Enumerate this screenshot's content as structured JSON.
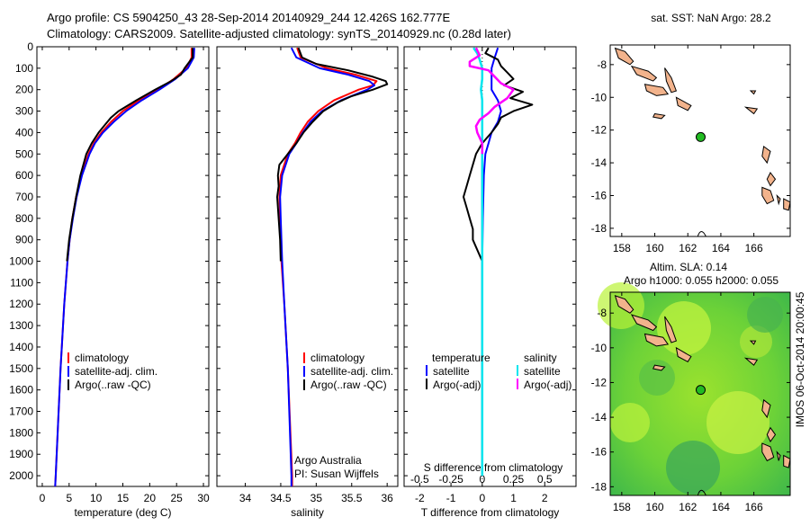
{
  "title_line1": "Argo profile: CS 5904250_43 28-Sep-2014 20140929_244 12.426S 162.777E",
  "title_line2": "Climatology: CARS2009. Satellite-adjusted climatology: synTS_20140929.nc (0.28d later)",
  "colors": {
    "climatology": "#ff0000",
    "satellite": "#0000ff",
    "argo": "#000000",
    "salinity_satellite": "#00e5ee",
    "salinity_argo": "#ff00ff",
    "land": "#f2b38c",
    "argo_marker": "#22bb22"
  },
  "watermark": "IMOS 06-Oct-2014 20:00:45",
  "chart_data": [
    {
      "id": "temperature",
      "type": "line",
      "xlabel": "temperature (deg C)",
      "ylabel": "depth",
      "xlim": [
        -1,
        31
      ],
      "ylim": [
        2050,
        0
      ],
      "xticks": [
        0,
        5,
        10,
        15,
        20,
        25,
        30
      ],
      "yticks": [
        0,
        100,
        200,
        300,
        400,
        500,
        600,
        700,
        800,
        900,
        1000,
        1100,
        1200,
        1300,
        1400,
        1500,
        1600,
        1700,
        1800,
        1900,
        2000
      ],
      "legend": [
        "climatology",
        "satellite-adj. clim.",
        "Argo(..raw -QC)"
      ],
      "series": [
        {
          "name": "climatology",
          "depth": [
            5,
            50,
            100,
            150,
            200,
            250,
            300,
            350,
            400,
            450,
            500,
            600,
            700,
            800,
            900,
            1000,
            1200,
            1500,
            2000,
            2050
          ],
          "values": [
            27.8,
            27.8,
            26.8,
            24.5,
            21.5,
            18.0,
            15.0,
            12.8,
            11.0,
            9.6,
            8.6,
            7.3,
            6.3,
            5.6,
            5.1,
            4.7,
            4.1,
            3.4,
            2.5,
            2.4
          ]
        },
        {
          "name": "satellite-adj. clim.",
          "depth": [
            5,
            50,
            100,
            150,
            200,
            250,
            300,
            350,
            400,
            450,
            500,
            600,
            700,
            800,
            900,
            1000,
            1200,
            1500,
            2000,
            2050
          ],
          "values": [
            28.3,
            28.2,
            27.1,
            24.8,
            21.8,
            18.5,
            15.6,
            13.3,
            11.3,
            9.8,
            8.8,
            7.4,
            6.4,
            5.7,
            5.1,
            4.7,
            4.1,
            3.4,
            2.5,
            2.4
          ]
        },
        {
          "name": "Argo",
          "depth": [
            5,
            50,
            100,
            130,
            160,
            200,
            250,
            300,
            330,
            360,
            400,
            450,
            500,
            600,
            700,
            800,
            900,
            1000
          ],
          "values": [
            28.0,
            28.0,
            26.5,
            25.8,
            24.0,
            21.0,
            17.5,
            14.2,
            12.8,
            11.8,
            10.5,
            9.2,
            8.2,
            7.1,
            6.3,
            5.6,
            5.0,
            4.6
          ]
        }
      ]
    },
    {
      "id": "salinity",
      "type": "line",
      "xlabel": "salinity",
      "xlim": [
        33.6,
        36.15
      ],
      "ylim": [
        2050,
        0
      ],
      "xticks": [
        34,
        34.5,
        35,
        35.5,
        36
      ],
      "legend": [
        "climatology",
        "satellite-adj. clim.",
        "Argo(..raw -QC)"
      ],
      "annotation": [
        "Argo Australia",
        "PI: Susan Wijffels"
      ],
      "series": [
        {
          "name": "climatology",
          "depth": [
            5,
            50,
            100,
            130,
            160,
            180,
            200,
            250,
            300,
            350,
            400,
            450,
            500,
            600,
            700,
            800,
            1000,
            1200,
            1500,
            2000,
            2050
          ],
          "values": [
            34.73,
            34.78,
            35.15,
            35.55,
            35.85,
            35.8,
            35.6,
            35.25,
            35.03,
            34.88,
            34.78,
            34.7,
            34.6,
            34.5,
            34.48,
            34.49,
            34.51,
            34.55,
            34.6,
            34.66,
            34.66
          ]
        },
        {
          "name": "satellite-adj. clim.",
          "depth": [
            5,
            50,
            100,
            130,
            160,
            180,
            200,
            250,
            300,
            350,
            400,
            450,
            500,
            600,
            700,
            800,
            1000,
            1200,
            1500,
            2000,
            2050
          ],
          "values": [
            34.65,
            34.72,
            35.05,
            35.45,
            35.75,
            35.82,
            35.72,
            35.35,
            35.08,
            34.92,
            34.81,
            34.72,
            34.62,
            34.52,
            34.49,
            34.5,
            34.52,
            34.55,
            34.6,
            34.65,
            34.65
          ]
        },
        {
          "name": "Argo",
          "depth": [
            5,
            50,
            80,
            110,
            140,
            160,
            175,
            200,
            230,
            260,
            300,
            350,
            400,
            450,
            500,
            550,
            600,
            650,
            700,
            750,
            800,
            900,
            1000
          ],
          "values": [
            34.75,
            34.8,
            35.0,
            35.45,
            35.8,
            35.98,
            36.0,
            35.8,
            35.5,
            35.3,
            35.1,
            34.95,
            34.82,
            34.72,
            34.6,
            34.48,
            34.46,
            34.47,
            34.45,
            34.46,
            34.47,
            34.49,
            34.5
          ]
        }
      ]
    },
    {
      "id": "difference",
      "type": "line",
      "xlabel": "T difference from climatology",
      "xlabel_top": "S difference from climatology",
      "xlim": [
        -2.5,
        3
      ],
      "ylim": [
        2050,
        0
      ],
      "xticks": [
        -2,
        -1,
        0,
        1,
        2
      ],
      "xticks_top": [
        -0.5,
        -0.25,
        0,
        0.25,
        0.5
      ],
      "legend_temperature": [
        "temperature",
        "satellite",
        "Argo(-adj)"
      ],
      "legend_salinity": [
        "salinity",
        "satellite",
        "Argo(-adj)"
      ],
      "series": [
        {
          "name": "T satellite",
          "depth": [
            5,
            50,
            100,
            150,
            200,
            250,
            300,
            350,
            400,
            450,
            500,
            600,
            800,
            1000,
            1500,
            2000
          ],
          "values": [
            0.5,
            0.4,
            0.3,
            0.3,
            0.3,
            0.5,
            0.6,
            0.5,
            0.3,
            0.2,
            0.1,
            0.05,
            0.02,
            0.0,
            0.0,
            0.0
          ]
        },
        {
          "name": "T Argo(-adj)",
          "depth": [
            5,
            30,
            60,
            90,
            120,
            150,
            180,
            210,
            240,
            270,
            300,
            330,
            360,
            400,
            450,
            500,
            550,
            600,
            650,
            700,
            750,
            800,
            850,
            900,
            1000,
            1200,
            1500,
            2000
          ],
          "values": [
            0.2,
            0.1,
            0.5,
            0.6,
            0.8,
            1.0,
            0.7,
            1.3,
            0.9,
            1.6,
            1.0,
            0.6,
            0.5,
            0.3,
            0.0,
            -0.2,
            -0.3,
            -0.4,
            -0.5,
            -0.6,
            -0.5,
            -0.4,
            -0.3,
            -0.3,
            0.0,
            0.0,
            0.0,
            0.0
          ]
        },
        {
          "name": "S satellite",
          "depth": [
            5,
            30,
            60,
            100,
            150,
            200,
            250,
            300,
            400,
            500,
            700,
            1000,
            1500,
            2000
          ],
          "values": [
            -0.07,
            -0.04,
            -0.02,
            0.0,
            0.0,
            -0.01,
            0.0,
            0.0,
            0.0,
            0.0,
            0.0,
            0.0,
            0.0,
            0.0
          ]
        },
        {
          "name": "S Argo(-adj)",
          "depth": [
            5,
            40,
            70,
            90,
            110,
            140,
            170,
            200,
            240,
            280,
            310,
            340,
            370,
            400,
            450,
            500
          ],
          "values": [
            -0.05,
            -0.02,
            -0.1,
            -0.1,
            0.05,
            0.1,
            0.15,
            0.25,
            0.2,
            0.1,
            0.05,
            -0.02,
            -0.05,
            -0.04,
            0.0,
            0.0
          ]
        }
      ]
    },
    {
      "id": "map_sst",
      "type": "map",
      "title": "sat. SST: NaN Argo: 28.2",
      "xlim": [
        157.3,
        168.2
      ],
      "ylim": [
        -18.5,
        -6.8
      ],
      "xticks": [
        158,
        160,
        162,
        164,
        166
      ],
      "yticks": [
        -8,
        -10,
        -12,
        -14,
        -16,
        -18
      ],
      "argo_position": [
        162.777,
        -12.426
      ]
    },
    {
      "id": "map_sla",
      "type": "map",
      "title_line1": "Altim. SLA: 0.14",
      "title_line2": "Argo h1000: 0.055 h2000: 0.055",
      "xlim": [
        157.3,
        168.2
      ],
      "ylim": [
        -18.5,
        -6.8
      ],
      "xticks": [
        158,
        160,
        162,
        164,
        166
      ],
      "yticks": [
        -8,
        -10,
        -12,
        -14,
        -16,
        -18
      ],
      "argo_position": [
        162.777,
        -12.426
      ]
    }
  ]
}
